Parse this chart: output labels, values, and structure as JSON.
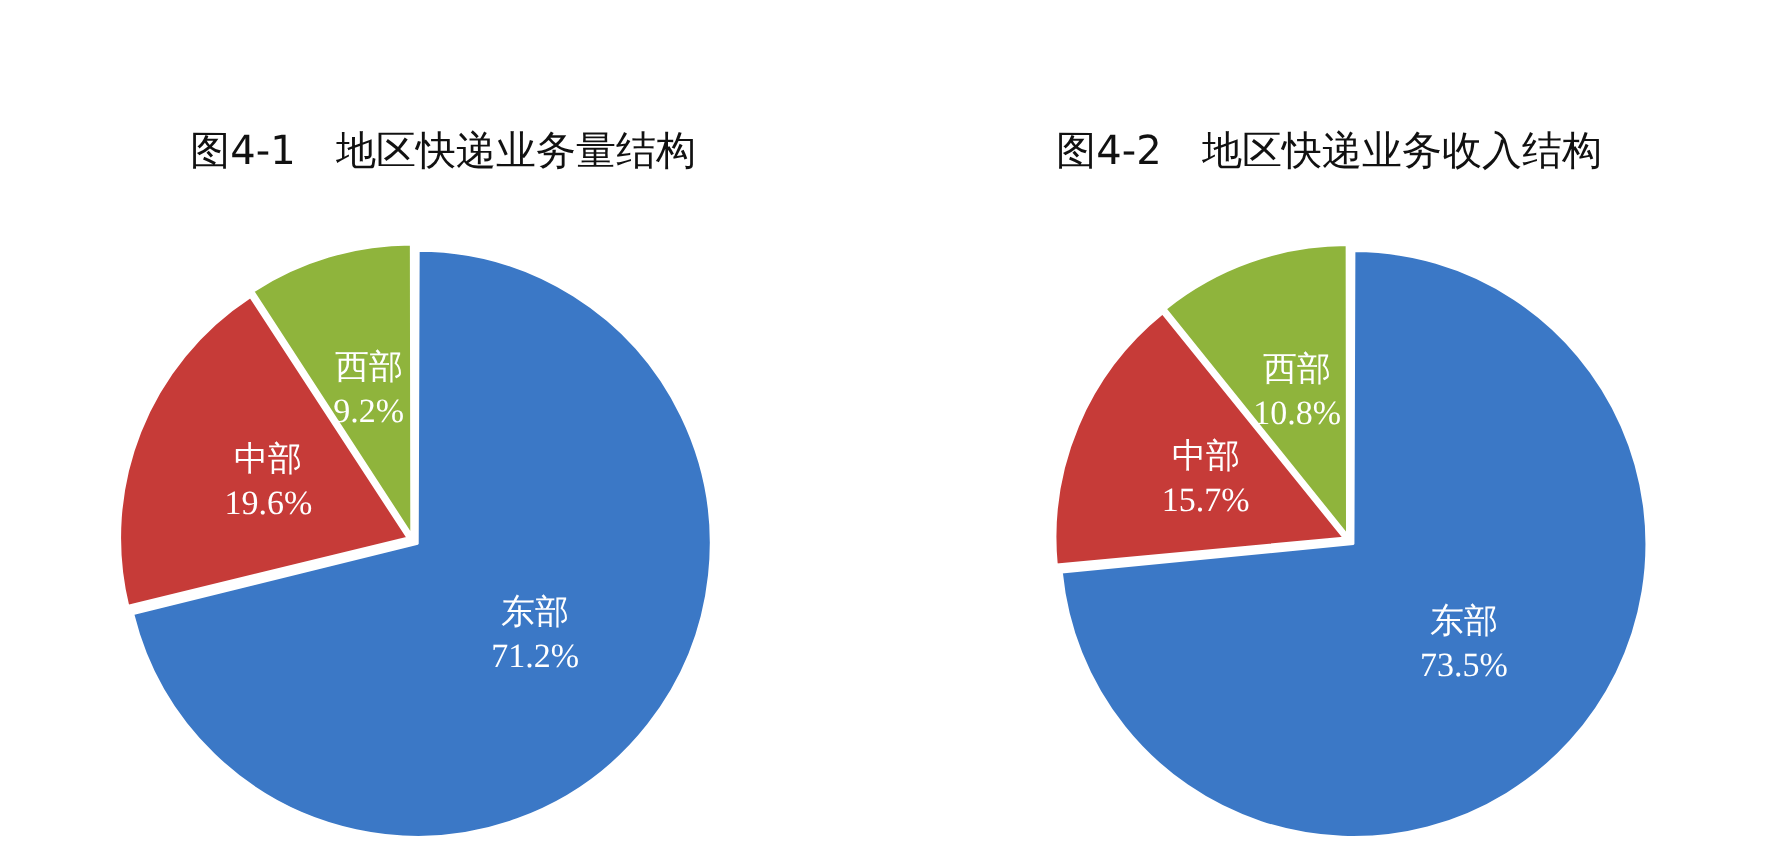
{
  "chart_data": [
    {
      "type": "pie",
      "title": "图4-1　地区快递业务量结构",
      "categories": [
        "东部",
        "中部",
        "西部"
      ],
      "values": [
        71.2,
        19.6,
        9.2
      ],
      "colors": [
        "#3b78c6",
        "#c63b38",
        "#8fb43c"
      ],
      "value_labels": [
        "71.2%",
        "19.6%",
        "9.2%"
      ]
    },
    {
      "type": "pie",
      "title": "图4-2　地区快递业务收入结构",
      "categories": [
        "东部",
        "中部",
        "西部"
      ],
      "values": [
        73.5,
        15.7,
        10.8
      ],
      "colors": [
        "#3b78c6",
        "#c63b38",
        "#8fb43c"
      ],
      "value_labels": [
        "73.5%",
        "15.7%",
        "10.8%"
      ]
    }
  ]
}
